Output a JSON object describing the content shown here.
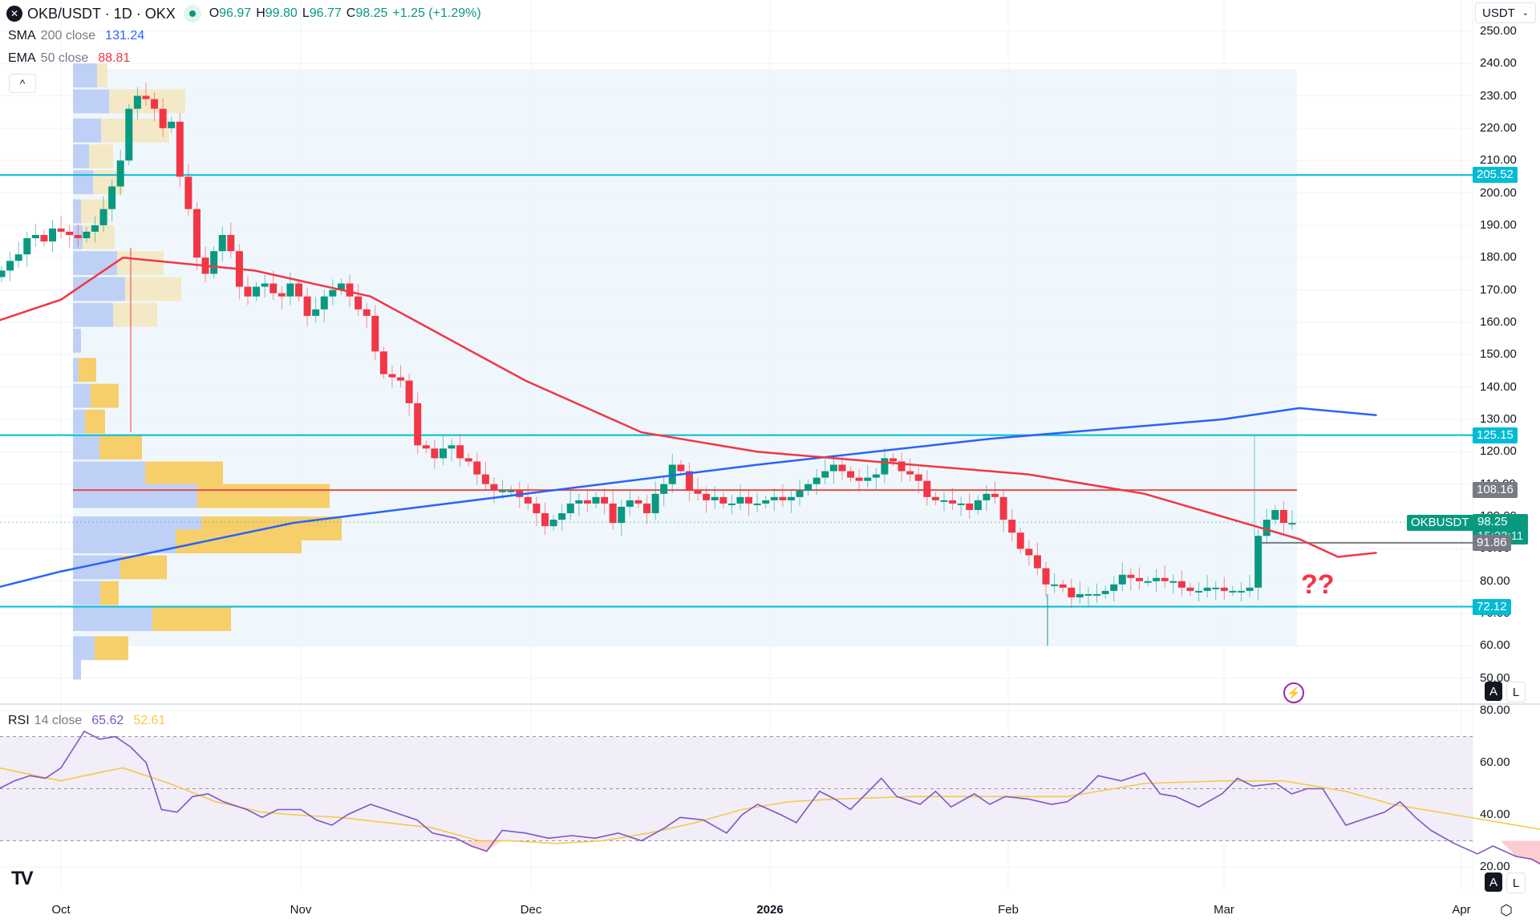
{
  "header": {
    "symbol": "OKB/USDT · 1D · OKX",
    "open_label": "O",
    "open": "96.97",
    "high_label": "H",
    "high": "99.80",
    "low_label": "L",
    "low": "96.77",
    "close_label": "C",
    "close": "98.25",
    "change": "+1.25 (+1.29%)",
    "currency_selector": "USDT"
  },
  "indicators": {
    "sma": {
      "name": "SMA",
      "params": "200 close",
      "value": "131.24",
      "color": "#2962ff"
    },
    "ema": {
      "name": "EMA",
      "params": "50 close",
      "value": "88.81",
      "color": "#f23645"
    },
    "rsi": {
      "name": "RSI",
      "params": "14 close",
      "value": "65.62",
      "ma_value": "52.61",
      "color": "#7e57c2",
      "ma_color": "#f7c948"
    }
  },
  "price_axis": {
    "ticks": [
      "250.00",
      "240.00",
      "230.00",
      "220.00",
      "210.00",
      "200.00",
      "190.00",
      "180.00",
      "170.00",
      "160.00",
      "150.00",
      "140.00",
      "130.00",
      "120.00",
      "110.00",
      "100.00",
      "90.00",
      "80.00",
      "70.00",
      "60.00",
      "50.00"
    ],
    "tags": [
      {
        "value": "205.52",
        "kind": "hline",
        "color": "#00bcd4"
      },
      {
        "value": "125.15",
        "kind": "hline",
        "color": "#00bcd4"
      },
      {
        "value": "108.16",
        "kind": "poc",
        "color": "#787b86"
      },
      {
        "value": "98.25",
        "kind": "last",
        "color": "#089981",
        "countdown": "15:23:11",
        "symbol": "OKBUSDT"
      },
      {
        "value": "91.86",
        "kind": "line",
        "color": "#787b86"
      },
      {
        "value": "72.12",
        "kind": "hline",
        "color": "#00bcd4"
      }
    ],
    "scale_buttons": [
      "A",
      "L"
    ]
  },
  "rsi_axis": {
    "ticks": [
      "80.00",
      "60.00",
      "40.00",
      "20.00"
    ],
    "bands": {
      "upper": 70,
      "middle": 50,
      "lower": 30
    },
    "scale_buttons": [
      "A",
      "L"
    ]
  },
  "time_axis": {
    "labels": [
      "Oct",
      "Nov",
      "Dec",
      "2026",
      "Feb",
      "Mar",
      "Apr"
    ]
  },
  "annotation": {
    "text": "??",
    "color": "#f23645"
  },
  "controls": {
    "collapse_legend": "^",
    "settings_icon": "gear-icon",
    "alert_icon": "lightning-icon"
  },
  "chart_data": {
    "type": "candlestick",
    "title": "OKB/USDT · 1D · OKX",
    "xlabel": "",
    "ylabel": "USDT",
    "ylim": [
      50,
      250
    ],
    "x_ticks": [
      "Oct",
      "Nov",
      "Dec",
      "2026",
      "Feb",
      "Mar",
      "Apr"
    ],
    "horizontal_lines": [
      205.52,
      125.15,
      108.16,
      91.86,
      72.12
    ],
    "last_price": 98.25,
    "ohlc_last": {
      "open": 96.97,
      "high": 99.8,
      "low": 96.77,
      "close": 98.25,
      "change": 1.25,
      "change_pct": 1.29
    },
    "series": [
      {
        "name": "SMA 200 close",
        "last": 131.24,
        "approx_path": [
          [
            -10,
            77
          ],
          [
            0,
            83
          ],
          [
            30,
            98
          ],
          [
            60,
            107
          ],
          [
            90,
            116
          ],
          [
            120,
            124
          ],
          [
            150,
            130
          ],
          [
            160,
            133.5
          ],
          [
            170,
            131.3
          ]
        ]
      },
      {
        "name": "EMA 50 close",
        "last": 88.81,
        "approx_path": [
          [
            -10,
            159
          ],
          [
            0,
            167
          ],
          [
            8,
            180
          ],
          [
            25,
            176
          ],
          [
            40,
            168
          ],
          [
            60,
            142
          ],
          [
            75,
            126
          ],
          [
            90,
            120
          ],
          [
            110,
            116
          ],
          [
            125,
            113
          ],
          [
            140,
            107
          ],
          [
            150,
            100
          ],
          [
            160,
            93
          ],
          [
            165,
            87.5
          ],
          [
            170,
            88.8
          ]
        ]
      },
      {
        "name": "RSI 14",
        "last": 65.62
      },
      {
        "name": "RSI MA",
        "last": 52.61
      }
    ],
    "candles_approx_close": [
      176,
      179,
      181,
      186,
      187,
      185,
      189,
      188,
      187,
      186,
      188,
      190,
      195,
      202,
      210,
      226,
      230,
      229,
      226,
      220,
      222,
      205,
      195,
      180,
      175,
      182,
      187,
      182,
      171,
      168,
      171,
      172,
      169,
      168,
      172,
      168,
      162,
      164,
      168,
      170,
      172,
      168,
      164,
      162,
      151,
      144,
      143,
      142,
      135,
      122,
      121,
      118,
      121,
      122,
      118,
      117,
      113,
      110,
      108,
      108,
      108,
      106,
      104,
      101,
      97,
      99,
      101,
      104,
      105,
      104,
      106,
      104,
      98,
      103,
      105,
      104,
      101,
      107,
      110,
      116,
      114,
      108,
      107,
      105,
      106,
      104,
      104,
      106,
      104,
      104,
      105,
      106,
      105,
      106,
      108,
      110,
      112,
      114,
      116,
      114,
      112,
      111,
      112,
      113,
      118,
      117,
      114,
      113,
      111,
      106,
      105,
      105,
      104,
      104,
      102,
      105,
      107,
      106,
      99,
      95,
      90,
      88,
      84,
      79,
      79,
      78,
      75,
      76,
      76,
      76,
      77,
      79,
      82,
      81,
      80,
      80,
      81,
      80,
      80,
      78,
      77,
      77,
      78,
      78,
      77,
      77,
      77,
      78,
      94,
      99,
      102,
      98,
      98
    ]
  }
}
